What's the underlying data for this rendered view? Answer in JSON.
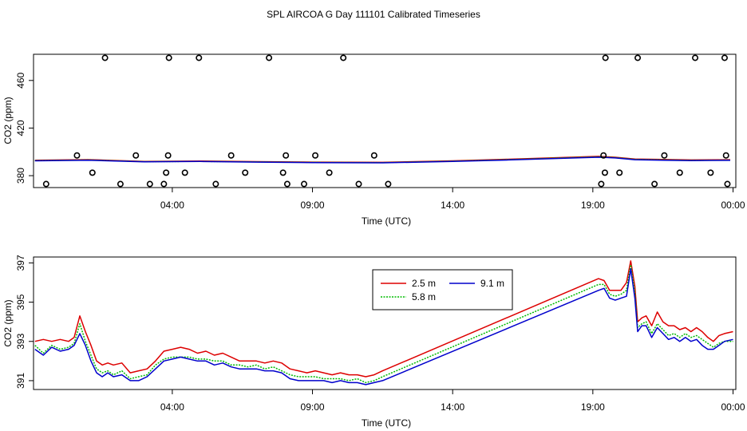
{
  "title": "SPL AIRCOA G  Day 111101  Calibrated Timeseries",
  "colors": {
    "red": "#dd0000",
    "green": "#00bb00",
    "blue": "#0000cc",
    "axis": "#000000"
  },
  "chart_data": [
    {
      "type": "line",
      "id": "top",
      "title": "",
      "xlabel": "Time (UTC)",
      "ylabel": "CO2 (ppm)",
      "x_unit": "hours since 00:00 UTC",
      "xlim": [
        -0.95,
        24.1
      ],
      "ylim": [
        370,
        482
      ],
      "x_ticks": [
        4,
        9,
        14,
        19,
        24
      ],
      "x_tick_labels": [
        "04:00",
        "09:00",
        "14:00",
        "19:00",
        "00:00"
      ],
      "y_ticks": [
        380,
        420,
        460
      ],
      "y_tick_labels": [
        "380",
        "420",
        "460"
      ],
      "series": [
        {
          "name": "2.5 m",
          "color": "#dd0000",
          "x": [
            -0.9,
            1,
            3,
            5,
            7,
            9,
            11.5,
            14,
            16,
            18,
            19.2,
            19.8,
            20.5,
            21.5,
            22.5,
            23.9
          ],
          "y": [
            393,
            393.5,
            392,
            392.3,
            391.8,
            391.4,
            391.2,
            392.5,
            393.8,
            395.3,
            396.2,
            395.5,
            394,
            393.6,
            393.2,
            393.4
          ]
        },
        {
          "name": "5.8 m",
          "color": "#00bb00",
          "x": [
            -0.9,
            1,
            3,
            5,
            7,
            9,
            11.5,
            14,
            16,
            18,
            19.2,
            19.8,
            20.5,
            21.5,
            22.5,
            23.9
          ],
          "y": [
            392.7,
            393.2,
            391.8,
            392,
            391.6,
            391.2,
            391,
            392.2,
            393.5,
            395,
            395.8,
            395.2,
            393.7,
            393.3,
            392.9,
            393.1
          ]
        },
        {
          "name": "9.1 m",
          "color": "#0000cc",
          "x": [
            -0.9,
            1,
            3,
            5,
            7,
            9,
            11.5,
            14,
            16,
            18,
            19.2,
            19.8,
            20.5,
            21.5,
            22.5,
            23.9
          ],
          "y": [
            392.5,
            393,
            391.6,
            391.9,
            391.4,
            391,
            390.8,
            391.9,
            393.2,
            394.7,
            395.5,
            394.9,
            393.4,
            393,
            392.7,
            392.9
          ]
        }
      ],
      "scatter_points": {
        "marker": "open-circle",
        "x": [
          -0.5,
          0.6,
          1.15,
          1.6,
          2.15,
          2.7,
          3.2,
          3.7,
          3.78,
          3.85,
          3.88,
          4.45,
          4.95,
          5.55,
          6.1,
          6.6,
          7.45,
          7.95,
          8.05,
          8.1,
          8.7,
          9.1,
          9.6,
          10.1,
          10.65,
          11.2,
          11.7,
          19.3,
          19.38,
          19.45,
          19.43,
          19.95,
          20.6,
          21.2,
          21.55,
          22.1,
          22.65,
          23.2,
          23.7,
          23.75,
          23.8
        ],
        "y": [
          373,
          397,
          382.5,
          479,
          373,
          397,
          373,
          373,
          382.5,
          397,
          479,
          382.5,
          479,
          373,
          397,
          382.5,
          479,
          382.5,
          397,
          373,
          373,
          397,
          382.5,
          479,
          373,
          397,
          373,
          373,
          397,
          479,
          382.5,
          382.5,
          479,
          373,
          397,
          382.5,
          479,
          382.5,
          479,
          397,
          373
        ]
      }
    },
    {
      "type": "line",
      "id": "bottom",
      "title": "",
      "xlabel": "Time (UTC)",
      "ylabel": "CO2 (ppm)",
      "x_unit": "hours since 00:00 UTC",
      "xlim": [
        -0.95,
        24.1
      ],
      "ylim": [
        390.55,
        397.3
      ],
      "x_ticks": [
        4,
        9,
        14,
        19,
        24
      ],
      "x_tick_labels": [
        "04:00",
        "09:00",
        "14:00",
        "19:00",
        "00:00"
      ],
      "y_ticks": [
        391,
        393,
        395,
        397
      ],
      "y_tick_labels": [
        "391",
        "393",
        "395",
        "397"
      ],
      "legend": {
        "position": "top-center",
        "entries": [
          "2.5 m",
          "9.1 m",
          "5.8 m"
        ]
      },
      "series": [
        {
          "name": "2.5 m",
          "color": "#dd0000",
          "x": [
            -0.9,
            -0.6,
            -0.3,
            0,
            0.3,
            0.5,
            0.7,
            0.9,
            1.1,
            1.3,
            1.5,
            1.7,
            1.9,
            2.2,
            2.5,
            2.8,
            3.1,
            3.4,
            3.7,
            4.0,
            4.3,
            4.6,
            4.9,
            5.2,
            5.5,
            5.8,
            6.1,
            6.4,
            6.7,
            7.0,
            7.3,
            7.6,
            7.9,
            8.2,
            8.5,
            8.8,
            9.1,
            9.4,
            9.7,
            10.0,
            10.3,
            10.6,
            10.9,
            11.2,
            11.5,
            19.2,
            19.4,
            19.6,
            19.8,
            20.0,
            20.2,
            20.35,
            20.5,
            20.6,
            20.75,
            20.9,
            21.1,
            21.3,
            21.5,
            21.7,
            21.9,
            22.1,
            22.3,
            22.5,
            22.7,
            22.9,
            23.1,
            23.3,
            23.5,
            23.7,
            24.0
          ],
          "y": [
            393.0,
            393.1,
            393.0,
            393.1,
            393.0,
            393.2,
            394.3,
            393.5,
            392.8,
            392.0,
            391.8,
            391.9,
            391.8,
            391.9,
            391.4,
            391.5,
            391.6,
            392.0,
            392.5,
            392.6,
            392.7,
            392.6,
            392.4,
            392.5,
            392.3,
            392.4,
            392.2,
            392.0,
            392.0,
            392.0,
            391.9,
            392.0,
            391.9,
            391.6,
            391.5,
            391.4,
            391.5,
            391.4,
            391.3,
            391.4,
            391.3,
            391.3,
            391.2,
            391.3,
            391.5,
            396.2,
            396.1,
            395.6,
            395.6,
            395.6,
            396.0,
            397.1,
            395.8,
            394.0,
            394.2,
            394.3,
            393.8,
            394.5,
            394.0,
            393.8,
            393.8,
            393.6,
            393.7,
            393.5,
            393.7,
            393.5,
            393.2,
            393.0,
            393.3,
            393.4,
            393.5
          ]
        },
        {
          "name": "5.8 m",
          "color": "#00bb00",
          "x": [
            -0.9,
            -0.6,
            -0.3,
            0,
            0.3,
            0.5,
            0.7,
            0.9,
            1.1,
            1.3,
            1.5,
            1.7,
            1.9,
            2.2,
            2.5,
            2.8,
            3.1,
            3.4,
            3.7,
            4.0,
            4.3,
            4.6,
            4.9,
            5.2,
            5.5,
            5.8,
            6.1,
            6.4,
            6.7,
            7.0,
            7.3,
            7.6,
            7.9,
            8.2,
            8.5,
            8.8,
            9.1,
            9.4,
            9.7,
            10.0,
            10.3,
            10.6,
            10.9,
            11.2,
            11.5,
            19.2,
            19.4,
            19.6,
            19.8,
            20.0,
            20.2,
            20.35,
            20.5,
            20.6,
            20.75,
            20.9,
            21.1,
            21.3,
            21.5,
            21.7,
            21.9,
            22.1,
            22.3,
            22.5,
            22.7,
            22.9,
            23.1,
            23.3,
            23.5,
            23.7,
            24.0
          ],
          "y": [
            392.8,
            392.4,
            392.8,
            392.6,
            392.7,
            392.9,
            393.9,
            393.0,
            392.3,
            391.6,
            391.4,
            391.5,
            391.3,
            391.5,
            391.1,
            391.2,
            391.3,
            391.8,
            392.1,
            392.2,
            392.2,
            392.2,
            392.1,
            392.1,
            392.0,
            392.0,
            391.8,
            391.8,
            391.7,
            391.8,
            391.6,
            391.7,
            391.5,
            391.3,
            391.2,
            391.2,
            391.2,
            391.1,
            391.1,
            391.1,
            391.0,
            391.1,
            390.9,
            391.0,
            391.2,
            395.9,
            395.9,
            395.4,
            395.3,
            395.4,
            395.6,
            396.9,
            395.5,
            393.7,
            393.9,
            394.0,
            393.4,
            393.9,
            393.6,
            393.3,
            393.4,
            393.2,
            393.4,
            393.2,
            393.3,
            393.1,
            392.9,
            392.7,
            392.9,
            393.0,
            393.0
          ]
        },
        {
          "name": "9.1 m",
          "color": "#0000cc",
          "x": [
            -0.9,
            -0.6,
            -0.3,
            0,
            0.3,
            0.5,
            0.7,
            0.9,
            1.1,
            1.3,
            1.5,
            1.7,
            1.9,
            2.2,
            2.5,
            2.8,
            3.1,
            3.4,
            3.7,
            4.0,
            4.3,
            4.6,
            4.9,
            5.2,
            5.5,
            5.8,
            6.1,
            6.4,
            6.7,
            7.0,
            7.3,
            7.6,
            7.9,
            8.2,
            8.5,
            8.8,
            9.1,
            9.4,
            9.7,
            10.0,
            10.3,
            10.6,
            10.9,
            11.2,
            11.5,
            19.2,
            19.4,
            19.6,
            19.8,
            20.0,
            20.2,
            20.35,
            20.5,
            20.6,
            20.75,
            20.9,
            21.1,
            21.3,
            21.5,
            21.7,
            21.9,
            22.1,
            22.3,
            22.5,
            22.7,
            22.9,
            23.1,
            23.3,
            23.5,
            23.7,
            24.0
          ],
          "y": [
            392.6,
            392.3,
            392.7,
            392.5,
            392.6,
            392.8,
            393.4,
            392.8,
            392.0,
            391.4,
            391.2,
            391.4,
            391.2,
            391.3,
            391.0,
            391.0,
            391.2,
            391.6,
            392.0,
            392.1,
            392.2,
            392.1,
            392.0,
            392.0,
            391.8,
            391.9,
            391.7,
            391.6,
            391.6,
            391.6,
            391.5,
            391.5,
            391.4,
            391.1,
            391.0,
            391.0,
            391.0,
            391.0,
            390.9,
            391.0,
            390.9,
            390.9,
            390.8,
            390.9,
            391.0,
            395.6,
            395.7,
            395.2,
            395.1,
            395.2,
            395.3,
            396.7,
            395.2,
            393.5,
            393.8,
            393.8,
            393.2,
            393.7,
            393.4,
            393.1,
            393.2,
            393.0,
            393.2,
            393.0,
            393.1,
            392.8,
            392.6,
            392.6,
            392.8,
            393.0,
            393.1
          ]
        }
      ]
    }
  ]
}
